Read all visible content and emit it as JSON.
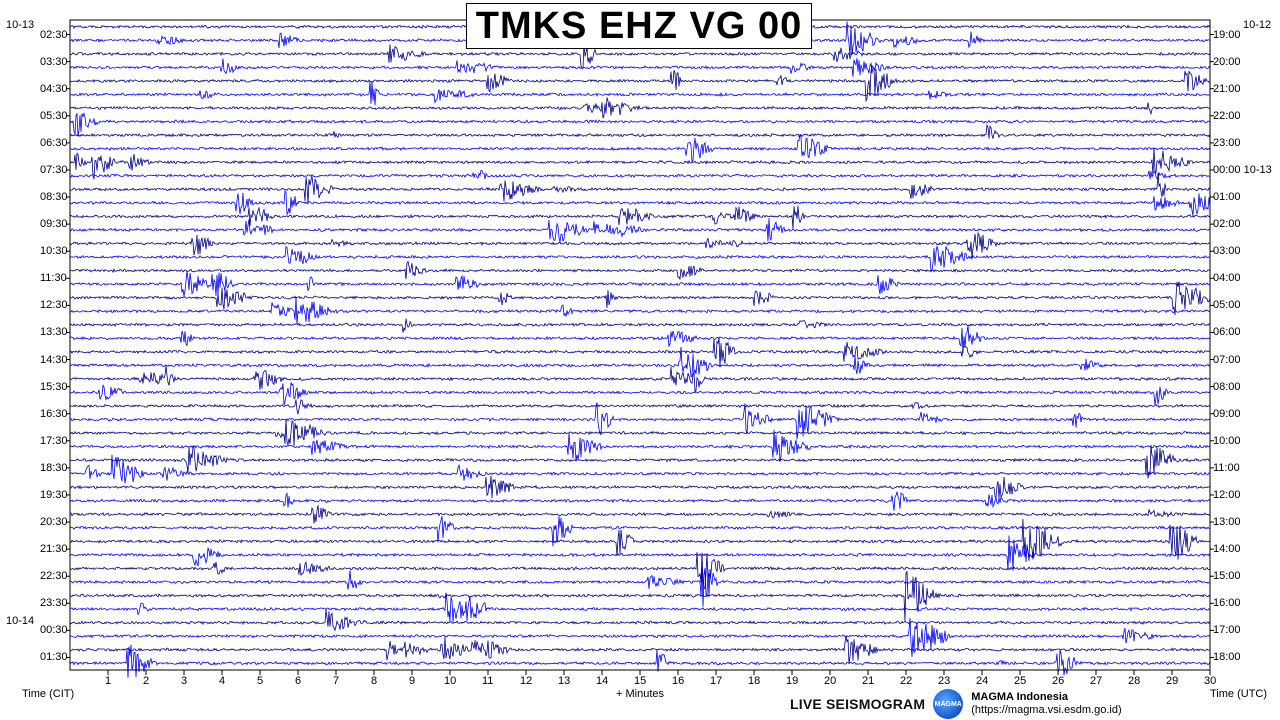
{
  "title": "TMKS EHZ VG 00",
  "colors": [
    "#00008b",
    "#0000ff",
    "#1a1aff",
    "#00006e"
  ],
  "chart_data": {
    "type": "line",
    "title": "TMKS EHZ VG 00",
    "xlabel": "+ Minutes",
    "xlim": [
      0,
      30
    ],
    "x_ticks": [
      "1",
      "2",
      "3",
      "4",
      "5",
      "6",
      "7",
      "8",
      "9",
      "10",
      "11",
      "12",
      "13",
      "14",
      "15",
      "16",
      "17",
      "18",
      "19",
      "20",
      "21",
      "22",
      "23",
      "24",
      "25",
      "26",
      "27",
      "28",
      "29",
      "30"
    ],
    "left_axis_label": "Time (CIT)",
    "right_axis_label": "Time (UTC)",
    "left_date_labels": [
      {
        "text": "10-13",
        "row": 0
      },
      {
        "text": "10-14",
        "row": 22
      }
    ],
    "right_date_labels": [
      {
        "text": "10-12",
        "row": 0
      }
    ],
    "left_times": [
      "02:30",
      "03:30",
      "04:30",
      "05:30",
      "06:30",
      "07:30",
      "08:30",
      "09:30",
      "10:30",
      "11:30",
      "12:30",
      "13:30",
      "14:30",
      "15:30",
      "16:30",
      "17:30",
      "18:30",
      "19:30",
      "20:30",
      "21:30",
      "22:30",
      "23:30",
      "00:30",
      "01:30"
    ],
    "right_times": [
      "19:00",
      "20:00",
      "21:00",
      "22:00",
      "23:00",
      "00:00 10-13",
      "01:00",
      "02:00",
      "03:00",
      "04:00",
      "05:00",
      "06:00",
      "07:00",
      "08:00",
      "09:00",
      "10:00",
      "11:00",
      "12:00",
      "13:00",
      "14:00",
      "15:00",
      "16:00",
      "17:00",
      "18:00"
    ],
    "traces_per_hour": 2,
    "trace_minutes": 30,
    "grid": false
  },
  "footer": {
    "live_label": "LIVE SEISMOGRAM",
    "brand_name": "MAGMA Indonesia",
    "brand_url": "(https://magma.vsi.esdm.go.id)",
    "logo_text": "MAGMA"
  }
}
